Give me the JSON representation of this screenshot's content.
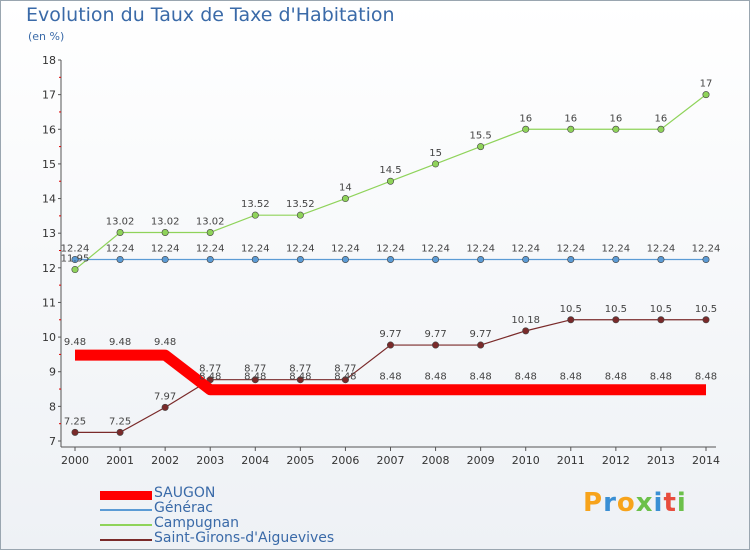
{
  "title": "Evolution du Taux de Taxe d'Habitation",
  "subtitle": "(en %)",
  "logo_text": "Proxiti",
  "chart_data": {
    "type": "line",
    "x": [
      "2000",
      "2001",
      "2002",
      "2003",
      "2004",
      "2005",
      "2006",
      "2007",
      "2008",
      "2009",
      "2010",
      "2011",
      "2012",
      "2013",
      "2014"
    ],
    "ylim": [
      7,
      18
    ],
    "yticks": [
      7,
      8,
      9,
      10,
      11,
      12,
      13,
      14,
      15,
      16,
      17,
      18
    ],
    "grid": false,
    "legend_position": "bottom-left",
    "series": [
      {
        "name": "SAUGON",
        "color": "#ff0000",
        "values": [
          9.48,
          9.48,
          9.48,
          8.48,
          8.48,
          8.48,
          8.48,
          8.48,
          8.48,
          8.48,
          8.48,
          8.48,
          8.48,
          8.48,
          8.48
        ],
        "labels": [
          "9.48",
          "9.48",
          "9.48",
          "8.48",
          "8.48",
          "8.48",
          "8.48",
          "8.48",
          "8.48",
          "8.48",
          "8.48",
          "8.48",
          "8.48",
          "8.48",
          "8.48"
        ]
      },
      {
        "name": "Générac",
        "color": "#5b9bd5",
        "values": [
          12.24,
          12.24,
          12.24,
          12.24,
          12.24,
          12.24,
          12.24,
          12.24,
          12.24,
          12.24,
          12.24,
          12.24,
          12.24,
          12.24,
          12.24
        ],
        "labels": [
          "12.24",
          "12.24",
          "12.24",
          "12.24",
          "12.24",
          "12.24",
          "12.24",
          "12.24",
          "12.24",
          "12.24",
          "12.24",
          "12.24",
          "12.24",
          "12.24",
          "12.24"
        ]
      },
      {
        "name": "Campugnan",
        "color": "#8fd35a",
        "values": [
          11.95,
          13.02,
          13.02,
          13.02,
          13.52,
          13.52,
          14,
          14.5,
          15,
          15.5,
          16,
          16,
          16,
          16,
          17
        ],
        "labels": [
          "11.95",
          "13.02",
          "13.02",
          "13.02",
          "13.52",
          "13.52",
          "14",
          "14.5",
          "15",
          "15.5",
          "16",
          "16",
          "16",
          "16",
          "17"
        ]
      },
      {
        "name": "Saint-Girons-d'Aiguevives",
        "color": "#7a2a2a",
        "values": [
          7.25,
          7.25,
          7.97,
          8.77,
          8.77,
          8.77,
          8.77,
          9.77,
          9.77,
          9.77,
          10.18,
          10.5,
          10.5,
          10.5,
          10.5
        ],
        "labels": [
          "7.25",
          "7.25",
          "7.97",
          "8.77",
          "8.77",
          "8.77",
          "8.77",
          "9.77",
          "9.77",
          "9.77",
          "10.18",
          "10.5",
          "10.5",
          "10.5",
          "10.5"
        ]
      }
    ]
  }
}
